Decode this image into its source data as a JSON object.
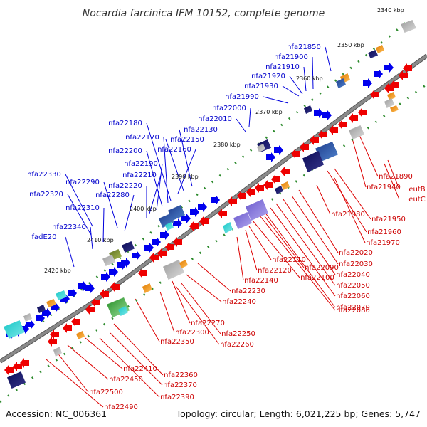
{
  "title": "Nocardia farcinica IFM 10152, complete genome",
  "footer": {
    "accession": "Accession: NC_006361",
    "summary": "Topology: circular; Length: 6,021,225 bp; Genes: 5,747"
  },
  "ruler": [
    {
      "label": "2340 kbp"
    },
    {
      "label": "2350 kbp"
    },
    {
      "label": "2360 kbp"
    },
    {
      "label": "2370 kbp"
    },
    {
      "label": "2380 kbp"
    },
    {
      "label": "2390 kbp"
    },
    {
      "label": "2400 kbp"
    },
    {
      "label": "2410 kbp"
    },
    {
      "label": "2420 kbp"
    }
  ],
  "forward_labels": [
    "nfa21850",
    "nfa21900",
    "nfa21910",
    "nfa21920",
    "nfa21930",
    "nfa21990",
    "nfa22000",
    "nfa22010",
    "nfa22130",
    "nfa22150",
    "nfa22160",
    "nfa22180",
    "nfa22170",
    "nfa22200",
    "nfa22190",
    "nfa22210",
    "nfa22220",
    "nfa22330",
    "nfa22290",
    "nfa22280",
    "nfa22320",
    "nfa22310",
    "nfa22340",
    "fadE20"
  ],
  "reverse_labels": [
    "nfa21890",
    "nfa21940",
    "eutB",
    "eutC",
    "nfa21950",
    "nfa21980",
    "nfa21960",
    "nfa21970",
    "nfa22020",
    "nfa22030",
    "nfa22040",
    "nfa22050",
    "nfa22060",
    "nfa22070",
    "nfa22080",
    "nfa22090",
    "nfa22100",
    "nfa22110",
    "nfa22120",
    "nfa22140",
    "nfa22230",
    "nfa22240",
    "nfa22270",
    "nfa22250",
    "nfa22260",
    "nfa22300",
    "nfa22350",
    "nfa22360",
    "nfa22370",
    "nfa22390",
    "nfa22410",
    "nfa22450",
    "nfa22500",
    "nfa22490"
  ],
  "colors": {
    "forward_gene": "#0000ee",
    "reverse_gene": "#ee0000",
    "backbone": "#8a8a8a",
    "ruler_dot": "#2e8b2e"
  }
}
